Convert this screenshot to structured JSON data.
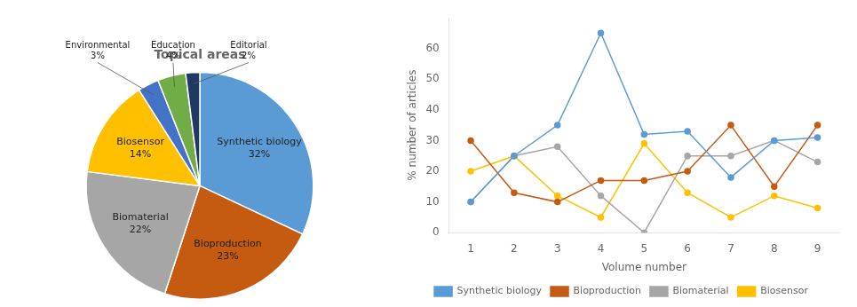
{
  "chart_data": [
    {
      "type": "pie",
      "title": "Topical areas",
      "categories": [
        "Synthetic biology",
        "Bioproduction",
        "Biomaterial",
        "Biosensor",
        "Environmental",
        "Education",
        "Editorial"
      ],
      "values": [
        32,
        23,
        22,
        14,
        3,
        4,
        2
      ],
      "value_labels": [
        "32%",
        "23%",
        "22%",
        "14%",
        "3%",
        "4%",
        "2%"
      ],
      "colors": [
        "#5B9BD5",
        "#C55A11",
        "#A6A6A6",
        "#FFC000",
        "#4472C4",
        "#70AD47",
        "#1F3864"
      ],
      "data_labels": true
    },
    {
      "type": "line",
      "x": [
        1,
        2,
        3,
        4,
        5,
        6,
        7,
        8,
        9
      ],
      "series": [
        {
          "name": "Synthetic biology",
          "color": "#5B9BD5",
          "marker": "circle",
          "values": [
            10,
            25,
            35,
            65,
            32,
            33,
            18,
            30,
            31
          ]
        },
        {
          "name": "Bioproduction",
          "color": "#C55A11",
          "marker": "circle",
          "values": [
            30,
            13,
            10,
            17,
            17,
            20,
            35,
            15,
            35
          ]
        },
        {
          "name": "Biomaterial",
          "color": "#A6A6A6",
          "marker": "circle",
          "values": [
            10,
            25,
            28,
            12,
            0,
            25,
            25,
            30,
            23
          ]
        },
        {
          "name": "Biosensor",
          "color": "#FFC000",
          "marker": "circle",
          "values": [
            20,
            25,
            12,
            5,
            29,
            13,
            5,
            12,
            8
          ]
        }
      ],
      "xlabel": "Volume number",
      "ylabel": "% number of articles",
      "xlim": [
        0.5,
        9.5
      ],
      "xticks": [
        1,
        2,
        3,
        4,
        5,
        6,
        7,
        8,
        9
      ],
      "ylim": [
        0,
        70
      ],
      "yticks": [
        0,
        10,
        20,
        30,
        40,
        50,
        60
      ],
      "grid": false,
      "legend": "bottom"
    }
  ]
}
